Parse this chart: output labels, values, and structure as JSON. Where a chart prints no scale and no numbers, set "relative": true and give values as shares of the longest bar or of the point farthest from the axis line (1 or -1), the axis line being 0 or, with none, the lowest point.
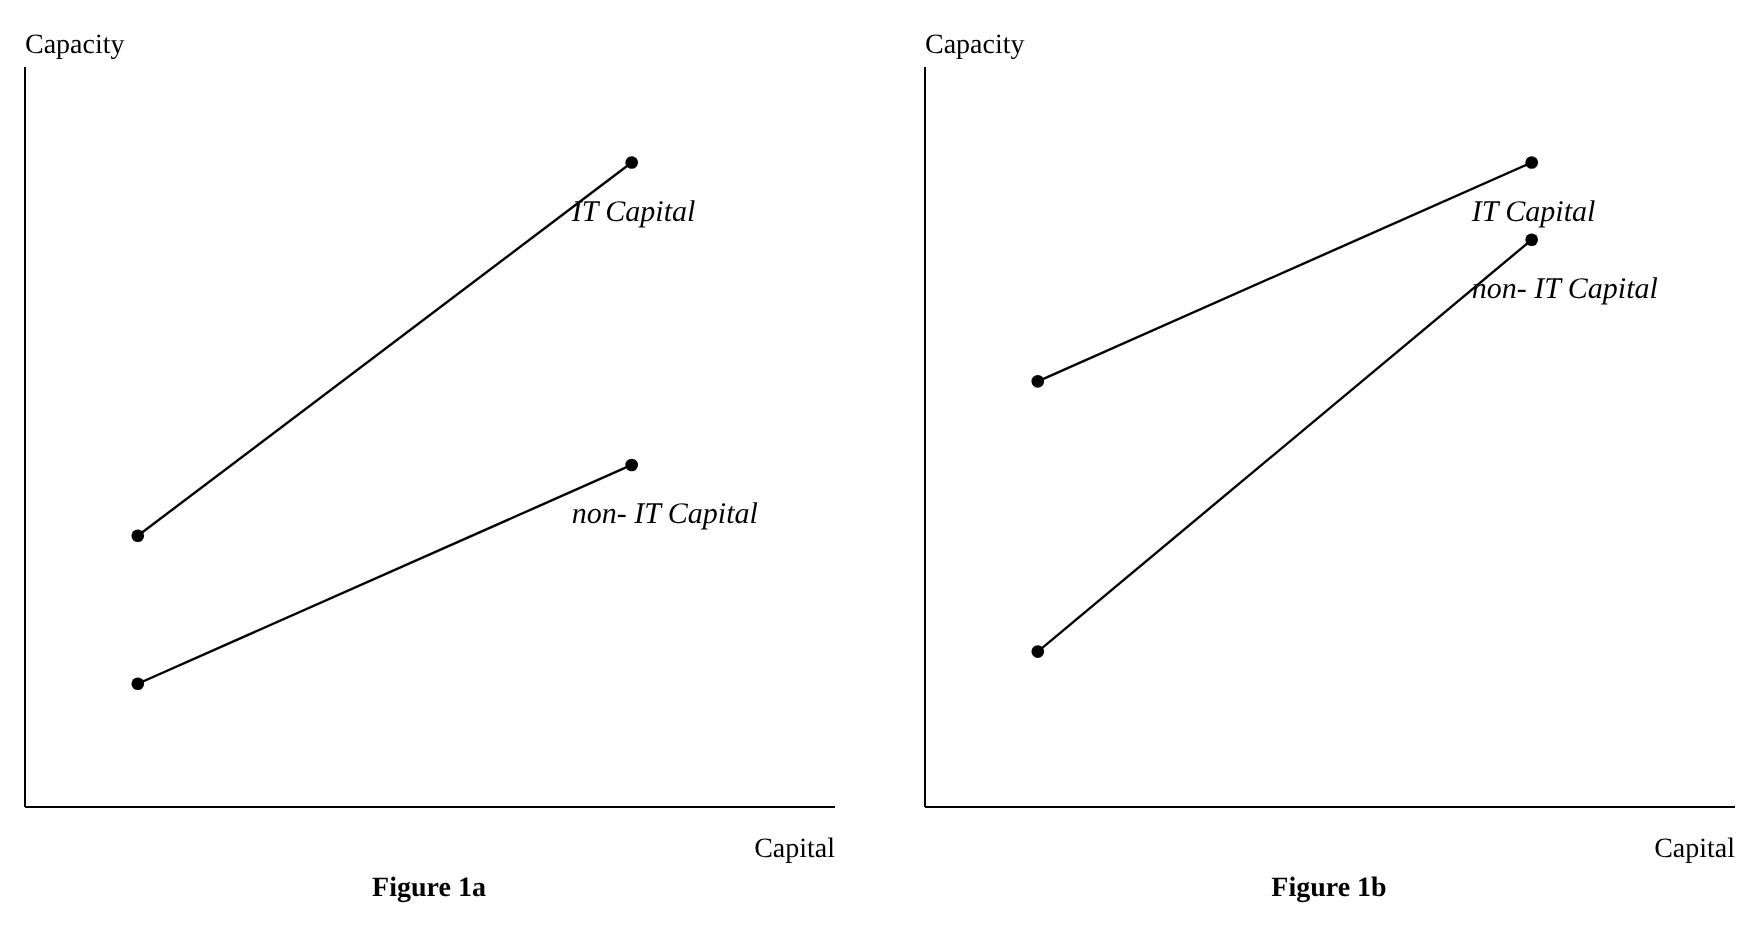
{
  "chart_data": [
    {
      "type": "line",
      "title": "Figure 1a",
      "xlabel": "Capital",
      "ylabel": "Capacity",
      "relative": true,
      "categories": [
        null,
        null
      ],
      "marker": "circle",
      "line_style": "solid",
      "series": [
        {
          "name": "IT Capital",
          "color": "#000000",
          "values": [
            0.42,
            1
          ]
        },
        {
          "name": "non- IT Capital",
          "color": "#000000",
          "values": [
            0.19,
            0.53
          ]
        }
      ]
    },
    {
      "type": "line",
      "title": "Figure 1b",
      "xlabel": "Capital",
      "ylabel": "Capacity",
      "relative": true,
      "categories": [
        null,
        null
      ],
      "marker": "circle",
      "line_style": "solid",
      "series": [
        {
          "name": "IT Capital",
          "color": "#000000",
          "values": [
            0.66,
            1
          ]
        },
        {
          "name": "non- IT Capital",
          "color": "#000000",
          "values": [
            0.24,
            0.88
          ]
        }
      ]
    }
  ]
}
